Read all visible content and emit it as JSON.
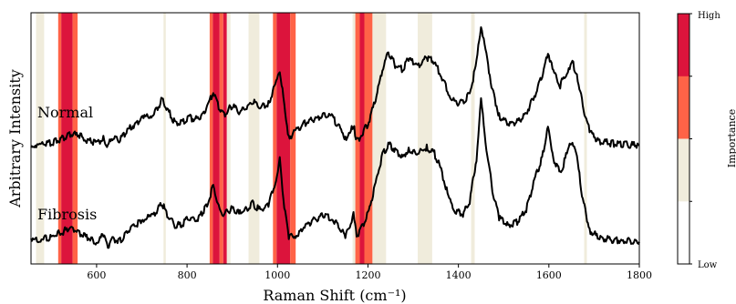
{
  "chart_data": {
    "type": "line",
    "xlabel": "Raman Shift (cm⁻¹)",
    "ylabel": "Arbitrary Intensity",
    "xlim": [
      455,
      1800
    ],
    "xticks": [
      600,
      800,
      1000,
      1200,
      1400,
      1600,
      1800
    ],
    "xtick_labels": [
      "600",
      "800",
      "1000",
      "1200",
      "1400",
      "1600",
      "1800"
    ],
    "grid": false,
    "annotations": [
      "Normal",
      "Fibrosis"
    ],
    "series": [
      {
        "name": "Normal",
        "color": "#000000",
        "x": [
          455,
          480,
          500,
          520,
          540,
          560,
          580,
          600,
          615,
          625,
          635,
          650,
          670,
          700,
          725,
          745,
          760,
          775,
          790,
          805,
          820,
          835,
          848,
          858,
          866,
          874,
          884,
          900,
          915,
          930,
          945,
          960,
          980,
          995,
          1005,
          1015,
          1025,
          1040,
          1060,
          1080,
          1100,
          1120,
          1135,
          1150,
          1160,
          1168,
          1175,
          1185,
          1200,
          1215,
          1230,
          1245,
          1260,
          1275,
          1290,
          1310,
          1330,
          1345,
          1360,
          1380,
          1395,
          1410,
          1425,
          1440,
          1450,
          1460,
          1475,
          1490,
          1510,
          1530,
          1550,
          1570,
          1585,
          1598,
          1610,
          1625,
          1640,
          1652,
          1662,
          1675,
          1690,
          1710,
          1740,
          1770,
          1800
        ],
        "y": [
          0.02,
          0.03,
          0.04,
          0.08,
          0.14,
          0.12,
          0.07,
          0.04,
          0.1,
          0.02,
          0.1,
          0.06,
          0.18,
          0.28,
          0.33,
          0.48,
          0.35,
          0.24,
          0.26,
          0.3,
          0.28,
          0.34,
          0.44,
          0.56,
          0.46,
          0.36,
          0.34,
          0.42,
          0.35,
          0.4,
          0.46,
          0.4,
          0.44,
          0.62,
          0.78,
          0.42,
          0.1,
          0.16,
          0.24,
          0.28,
          0.32,
          0.3,
          0.22,
          0.1,
          0.14,
          0.22,
          0.06,
          0.12,
          0.24,
          0.44,
          0.74,
          0.96,
          0.82,
          0.78,
          0.88,
          0.82,
          0.9,
          0.86,
          0.74,
          0.52,
          0.44,
          0.46,
          0.54,
          0.84,
          1.22,
          0.96,
          0.58,
          0.32,
          0.24,
          0.26,
          0.34,
          0.54,
          0.7,
          0.96,
          0.74,
          0.62,
          0.76,
          0.86,
          0.72,
          0.42,
          0.16,
          0.06,
          0.04,
          0.03,
          0.02
        ]
      },
      {
        "name": "Fibrosis",
        "color": "#000000",
        "x": [
          455,
          480,
          500,
          520,
          540,
          560,
          580,
          600,
          615,
          625,
          635,
          650,
          670,
          700,
          725,
          745,
          760,
          775,
          790,
          805,
          820,
          835,
          848,
          858,
          866,
          874,
          884,
          900,
          915,
          930,
          945,
          960,
          980,
          995,
          1005,
          1015,
          1025,
          1040,
          1060,
          1080,
          1100,
          1120,
          1135,
          1150,
          1160,
          1168,
          1175,
          1185,
          1200,
          1215,
          1230,
          1245,
          1260,
          1275,
          1290,
          1310,
          1330,
          1345,
          1360,
          1380,
          1395,
          1410,
          1425,
          1440,
          1450,
          1460,
          1475,
          1490,
          1510,
          1530,
          1550,
          1570,
          1585,
          1598,
          1610,
          1625,
          1640,
          1652,
          1662,
          1675,
          1690,
          1710,
          1740,
          1770,
          1800
        ],
        "y": [
          0.02,
          0.05,
          0.07,
          0.11,
          0.16,
          0.12,
          0.06,
          0.02,
          0.08,
          -0.02,
          0.06,
          0.02,
          0.14,
          0.24,
          0.28,
          0.4,
          0.26,
          0.18,
          0.2,
          0.26,
          0.24,
          0.32,
          0.44,
          0.58,
          0.44,
          0.32,
          0.3,
          0.36,
          0.3,
          0.34,
          0.4,
          0.34,
          0.38,
          0.62,
          0.84,
          0.36,
          0.06,
          0.08,
          0.18,
          0.24,
          0.28,
          0.26,
          0.18,
          0.08,
          0.18,
          0.3,
          0.08,
          0.16,
          0.3,
          0.56,
          0.86,
          1.0,
          0.94,
          0.86,
          0.94,
          0.9,
          0.96,
          0.92,
          0.76,
          0.44,
          0.32,
          0.3,
          0.42,
          0.86,
          1.44,
          1.02,
          0.54,
          0.26,
          0.18,
          0.22,
          0.34,
          0.66,
          0.86,
          1.16,
          0.86,
          0.7,
          0.9,
          1.04,
          0.86,
          0.44,
          0.14,
          0.06,
          0.04,
          0.03,
          0.02
        ]
      }
    ],
    "highlight_bands": [
      {
        "x": [
          466,
          484
        ],
        "level": "low"
      },
      {
        "x": [
          515,
          522
        ],
        "level": "medium"
      },
      {
        "x": [
          522,
          547
        ],
        "level": "high"
      },
      {
        "x": [
          547,
          558
        ],
        "level": "medium"
      },
      {
        "x": [
          748,
          753
        ],
        "level": "low"
      },
      {
        "x": [
          850,
          857
        ],
        "level": "medium"
      },
      {
        "x": [
          857,
          872
        ],
        "level": "high"
      },
      {
        "x": [
          872,
          880
        ],
        "level": "medium"
      },
      {
        "x": [
          880,
          888
        ],
        "level": "high"
      },
      {
        "x": [
          888,
          896
        ],
        "level": "low"
      },
      {
        "x": [
          936,
          960
        ],
        "level": "low"
      },
      {
        "x": [
          990,
          998
        ],
        "level": "medium"
      },
      {
        "x": [
          998,
          1028
        ],
        "level": "high"
      },
      {
        "x": [
          1028,
          1040
        ],
        "level": "medium"
      },
      {
        "x": [
          1166,
          1172
        ],
        "level": "low"
      },
      {
        "x": [
          1172,
          1182
        ],
        "level": "medium"
      },
      {
        "x": [
          1182,
          1192
        ],
        "level": "high"
      },
      {
        "x": [
          1192,
          1210
        ],
        "level": "medium"
      },
      {
        "x": [
          1210,
          1240
        ],
        "level": "low"
      },
      {
        "x": [
          1310,
          1342
        ],
        "level": "low"
      },
      {
        "x": [
          1428,
          1436
        ],
        "level": "low"
      },
      {
        "x": [
          1678,
          1684
        ],
        "level": "low"
      }
    ],
    "colorbar": {
      "title": "Importance",
      "tick_labels": [
        "High",
        "Low"
      ],
      "levels": [
        {
          "name": "high",
          "color": "#dc143c"
        },
        {
          "name": "medium",
          "color": "#ff6347"
        },
        {
          "name": "low",
          "color": "#f0ecdc"
        },
        {
          "name": "none",
          "color": "#ffffff"
        }
      ]
    }
  }
}
